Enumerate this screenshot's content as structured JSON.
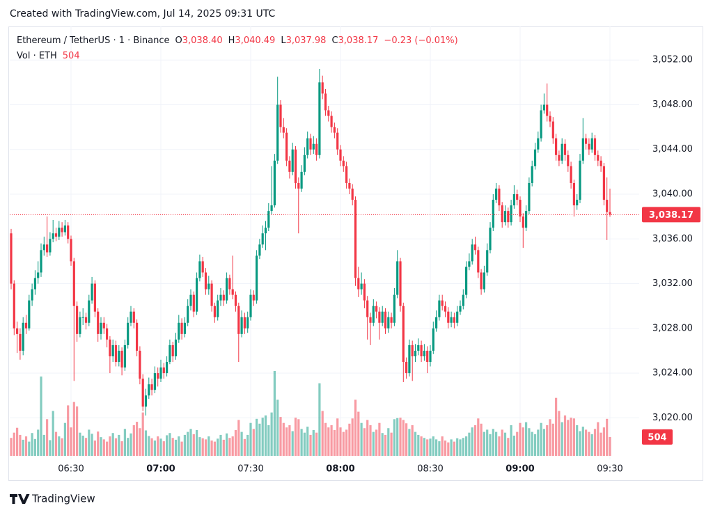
{
  "header": "Created with TradingView.com, Jul 14, 2025 09:31 UTC",
  "footer_logo": "TradingView",
  "chart_data": {
    "type": "candlestick",
    "title": "Ethereum / TetherUS · 1 · Binance",
    "ohlc_legend": [
      {
        "key": "O",
        "value": "3,038.40"
      },
      {
        "key": "H",
        "value": "3,040.49"
      },
      {
        "key": "L",
        "value": "3,037.98"
      },
      {
        "key": "C",
        "value": "3,038.17"
      }
    ],
    "change_label": "−0.23 (−0.01%)",
    "volume_title": "Vol · ETH",
    "last_close_label": "3,038.17",
    "up_color": "#089981",
    "down_color": "#f23645",
    "grid": true,
    "ylim": [
      3016.6,
      3055.0
    ],
    "yticks": [
      {
        "value": 3020,
        "label": "3,020.00"
      },
      {
        "value": 3024,
        "label": "3,024.00"
      },
      {
        "value": 3028,
        "label": "3,028.00"
      },
      {
        "value": 3032,
        "label": "3,032.00"
      },
      {
        "value": 3036,
        "label": "3,036.00"
      },
      {
        "value": 3040,
        "label": "3,040.00"
      },
      {
        "value": 3044,
        "label": "3,044.00"
      },
      {
        "value": 3048,
        "label": "3,048.00"
      },
      {
        "value": 3052,
        "label": "3,052.00"
      }
    ],
    "xticks": [
      "06:30",
      "07:00",
      "07:30",
      "08:00",
      "08:30",
      "09:00",
      "09:30"
    ],
    "x": [
      "06:10",
      "06:11",
      "06:12",
      "06:13",
      "06:14",
      "06:15",
      "06:16",
      "06:17",
      "06:18",
      "06:19",
      "06:20",
      "06:21",
      "06:22",
      "06:23",
      "06:24",
      "06:25",
      "06:26",
      "06:27",
      "06:28",
      "06:29",
      "06:30",
      "06:31",
      "06:32",
      "06:33",
      "06:34",
      "06:35",
      "06:36",
      "06:37",
      "06:38",
      "06:39",
      "06:40",
      "06:41",
      "06:42",
      "06:43",
      "06:44",
      "06:45",
      "06:46",
      "06:47",
      "06:48",
      "06:49",
      "06:50",
      "06:51",
      "06:52",
      "06:53",
      "06:54",
      "06:55",
      "06:56",
      "06:57",
      "06:58",
      "06:59",
      "07:00",
      "07:01",
      "07:02",
      "07:03",
      "07:04",
      "07:05",
      "07:06",
      "07:07",
      "07:08",
      "07:09",
      "07:10",
      "07:11",
      "07:12",
      "07:13",
      "07:14",
      "07:15",
      "07:16",
      "07:17",
      "07:18",
      "07:19",
      "07:20",
      "07:21",
      "07:22",
      "07:23",
      "07:24",
      "07:25",
      "07:26",
      "07:27",
      "07:28",
      "07:29",
      "07:30",
      "07:31",
      "07:32",
      "07:33",
      "07:34",
      "07:35",
      "07:36",
      "07:37",
      "07:38",
      "07:39",
      "07:40",
      "07:41",
      "07:42",
      "07:43",
      "07:44",
      "07:45",
      "07:46",
      "07:47",
      "07:48",
      "07:49",
      "07:50",
      "07:51",
      "07:52",
      "07:53",
      "07:54",
      "07:55",
      "07:56",
      "07:57",
      "07:58",
      "07:59",
      "08:00",
      "08:01",
      "08:02",
      "08:03",
      "08:04",
      "08:05",
      "08:06",
      "08:07",
      "08:08",
      "08:09",
      "08:10",
      "08:11",
      "08:12",
      "08:13",
      "08:14",
      "08:15",
      "08:16",
      "08:17",
      "08:18",
      "08:19",
      "08:20",
      "08:21",
      "08:22",
      "08:23",
      "08:24",
      "08:25",
      "08:26",
      "08:27",
      "08:28",
      "08:29",
      "08:30",
      "08:31",
      "08:32",
      "08:33",
      "08:34",
      "08:35",
      "08:36",
      "08:37",
      "08:38",
      "08:39",
      "08:40",
      "08:41",
      "08:42",
      "08:43",
      "08:44",
      "08:45",
      "08:46",
      "08:47",
      "08:48",
      "08:49",
      "08:50",
      "08:51",
      "08:52",
      "08:53",
      "08:54",
      "08:55",
      "08:56",
      "08:57",
      "08:58",
      "08:59",
      "09:00",
      "09:01",
      "09:02",
      "09:03",
      "09:04",
      "09:05",
      "09:06",
      "09:07",
      "09:08",
      "09:09",
      "09:10",
      "09:11",
      "09:12",
      "09:13",
      "09:14",
      "09:15",
      "09:16",
      "09:17",
      "09:18",
      "09:19",
      "09:20",
      "09:21",
      "09:22",
      "09:23",
      "09:24",
      "09:25",
      "09:26",
      "09:27",
      "09:28",
      "09:29",
      "09:30"
    ],
    "open": [
      3036.5,
      3032.0,
      3028.0,
      3027.5,
      3026.0,
      3028.5,
      3028.0,
      3030.5,
      3031.5,
      3032.5,
      3033.0,
      3035.0,
      3035.5,
      3034.8,
      3036.0,
      3036.5,
      3036.2,
      3037.0,
      3036.6,
      3037.2,
      3036.0,
      3034.0,
      3030.0,
      3027.5,
      3029.0,
      3029.0,
      3028.5,
      3030.5,
      3032.0,
      3029.5,
      3027.5,
      3028.5,
      3028.0,
      3027.0,
      3025.5,
      3026.5,
      3025.0,
      3026.0,
      3024.5,
      3026.5,
      3028.5,
      3029.5,
      3028.5,
      3026.0,
      3023.5,
      3021.0,
      3022.0,
      3023.0,
      3022.5,
      3024.0,
      3023.5,
      3024.5,
      3024.0,
      3025.0,
      3026.5,
      3025.5,
      3027.0,
      3028.5,
      3027.5,
      3028.5,
      3030.0,
      3031.0,
      3029.5,
      3032.5,
      3034.0,
      3033.0,
      3031.5,
      3032.0,
      3030.0,
      3029.0,
      3030.5,
      3031.0,
      3030.5,
      3032.5,
      3031.5,
      3031.0,
      3030.0,
      3027.5,
      3029.0,
      3028.0,
      3029.0,
      3031.0,
      3030.5,
      3034.5,
      3035.5,
      3036.5,
      3037.0,
      3038.5,
      3039.0,
      3043.0,
      3048.0,
      3046.0,
      3045.5,
      3043.0,
      3042.0,
      3044.0,
      3041.0,
      3040.5,
      3042.0,
      3043.5,
      3045.0,
      3044.0,
      3044.5,
      3043.5,
      3050.0,
      3049.0,
      3047.5,
      3047.0,
      3046.0,
      3045.5,
      3044.0,
      3043.0,
      3042.5,
      3041.0,
      3040.5,
      3039.5,
      3032.5,
      3031.5,
      3032.0,
      3030.5,
      3029.0,
      3028.5,
      3030.0,
      3029.5,
      3028.5,
      3029.5,
      3028.0,
      3029.0,
      3028.5,
      3031.0,
      3034.0,
      3030.0,
      3025.0,
      3024.0,
      3026.5,
      3025.5,
      3026.0,
      3026.5,
      3025.5,
      3026.0,
      3025.0,
      3026.0,
      3028.0,
      3029.0,
      3030.5,
      3030.0,
      3029.5,
      3028.5,
      3029.0,
      3028.5,
      3029.5,
      3030.0,
      3031.0,
      3033.5,
      3034.0,
      3035.5,
      3035.0,
      3033.0,
      3031.5,
      3033.0,
      3035.0,
      3037.0,
      3039.5,
      3040.5,
      3039.0,
      3037.5,
      3038.5,
      3037.5,
      3039.0,
      3040.0,
      3039.5,
      3038.0,
      3037.0,
      3038.5,
      3041.0,
      3042.5,
      3044.0,
      3045.0,
      3047.5,
      3048.0,
      3047.0,
      3046.5,
      3045.0,
      3043.5,
      3043.0,
      3044.5,
      3043.5,
      3042.5,
      3041.0,
      3039.0,
      3039.5,
      3043.0,
      3045.0,
      3044.5,
      3044.0,
      3045.0,
      3043.5,
      3043.0,
      3042.5,
      3039.5,
      3038.4
    ],
    "high": [
      3036.9,
      3032.3,
      3028.6,
      3028.0,
      3029.0,
      3029.2,
      3031.0,
      3032.0,
      3033.2,
      3034.0,
      3035.6,
      3036.2,
      3038.0,
      3036.6,
      3037.7,
      3037.0,
      3037.6,
      3037.5,
      3037.7,
      3037.5,
      3036.3,
      3034.3,
      3030.4,
      3029.5,
      3029.8,
      3029.4,
      3031.0,
      3032.6,
      3032.3,
      3029.8,
      3029.0,
      3029.0,
      3028.4,
      3027.3,
      3027.0,
      3026.9,
      3026.5,
      3026.3,
      3027.0,
      3029.0,
      3030.0,
      3029.8,
      3028.8,
      3026.4,
      3023.9,
      3022.6,
      3023.6,
      3023.5,
      3024.6,
      3024.5,
      3025.2,
      3024.9,
      3025.5,
      3027.0,
      3026.8,
      3027.6,
      3029.2,
      3028.9,
      3029.0,
      3030.6,
      3031.5,
      3031.3,
      3033.0,
      3034.6,
      3034.4,
      3033.4,
      3032.7,
      3032.3,
      3030.3,
      3031.0,
      3031.6,
      3031.4,
      3033.0,
      3032.8,
      3034.5,
      3031.3,
      3030.3,
      3029.6,
      3029.4,
      3029.5,
      3031.5,
      3031.4,
      3035.0,
      3036.0,
      3037.2,
      3037.6,
      3039.2,
      3042.5,
      3043.6,
      3050.5,
      3048.4,
      3046.8,
      3045.9,
      3043.4,
      3044.6,
      3044.3,
      3041.5,
      3042.6,
      3044.2,
      3045.6,
      3045.4,
      3045.2,
      3045.0,
      3051.2,
      3050.6,
      3049.4,
      3047.9,
      3047.4,
      3046.4,
      3045.9,
      3044.4,
      3043.4,
      3042.9,
      3041.4,
      3040.9,
      3039.8,
      3033.5,
      3033.0,
      3032.4,
      3030.9,
      3029.4,
      3030.6,
      3030.4,
      3029.9,
      3030.0,
      3029.8,
      3029.5,
      3029.4,
      3031.6,
      3035.0,
      3034.3,
      3030.3,
      3025.4,
      3027.0,
      3026.9,
      3026.6,
      3027.1,
      3026.9,
      3026.6,
      3026.4,
      3026.5,
      3028.6,
      3029.6,
      3031.0,
      3031.0,
      3030.4,
      3029.9,
      3029.5,
      3029.4,
      3030.0,
      3030.5,
      3031.5,
      3034.0,
      3034.7,
      3036.0,
      3036.2,
      3035.3,
      3033.3,
      3033.6,
      3035.6,
      3037.5,
      3040.0,
      3041.0,
      3040.8,
      3039.3,
      3039.0,
      3038.8,
      3039.5,
      3040.8,
      3040.4,
      3039.8,
      3038.3,
      3039.0,
      3041.5,
      3043.0,
      3044.6,
      3045.6,
      3048.0,
      3049.0,
      3049.9,
      3047.4,
      3046.9,
      3045.4,
      3043.9,
      3045.0,
      3044.9,
      3043.9,
      3042.9,
      3041.3,
      3040.0,
      3043.6,
      3046.8,
      3045.4,
      3045.0,
      3045.5,
      3045.3,
      3043.9,
      3043.4,
      3042.8,
      3041.5,
      3040.49
    ],
    "low": [
      3031.5,
      3027.4,
      3025.8,
      3025.2,
      3025.6,
      3027.5,
      3027.8,
      3030.0,
      3031.0,
      3032.0,
      3032.6,
      3034.5,
      3034.4,
      3034.5,
      3035.7,
      3035.8,
      3035.9,
      3036.2,
      3036.3,
      3035.6,
      3033.6,
      3023.3,
      3026.8,
      3027.2,
      3028.3,
      3027.9,
      3028.2,
      3030.2,
      3029.0,
      3026.8,
      3027.0,
      3027.5,
      3026.3,
      3024.0,
      3025.0,
      3024.6,
      3024.6,
      3023.8,
      3024.2,
      3026.2,
      3028.2,
      3028.0,
      3025.5,
      3023.0,
      3020.6,
      3020.2,
      3021.7,
      3022.0,
      3022.2,
      3022.8,
      3023.2,
      3023.5,
      3023.7,
      3024.8,
      3025.0,
      3025.2,
      3026.7,
      3027.0,
      3027.2,
      3028.2,
      3029.6,
      3029.0,
      3029.2,
      3032.2,
      3032.6,
      3031.0,
      3031.0,
      3029.5,
      3028.5,
      3028.7,
      3030.0,
      3030.0,
      3030.2,
      3031.0,
      3030.6,
      3029.5,
      3025.0,
      3027.2,
      3027.5,
      3027.6,
      3028.7,
      3030.0,
      3030.2,
      3034.2,
      3035.2,
      3035.0,
      3036.7,
      3038.2,
      3038.8,
      3042.7,
      3045.5,
      3045.0,
      3042.5,
      3041.4,
      3041.7,
      3040.5,
      3036.5,
      3040.2,
      3041.7,
      3043.2,
      3043.5,
      3043.6,
      3043.0,
      3043.2,
      3048.5,
      3047.0,
      3046.5,
      3045.5,
      3045.0,
      3043.5,
      3042.5,
      3042.0,
      3040.5,
      3040.0,
      3039.0,
      3031.8,
      3030.8,
      3031.0,
      3029.8,
      3027.0,
      3026.5,
      3028.2,
      3028.9,
      3027.0,
      3028.2,
      3027.5,
      3027.6,
      3028.0,
      3028.2,
      3030.7,
      3029.5,
      3023.2,
      3023.5,
      3023.7,
      3023.3,
      3025.0,
      3025.6,
      3025.0,
      3025.1,
      3024.0,
      3024.6,
      3025.7,
      3027.7,
      3028.7,
      3029.6,
      3029.0,
      3028.0,
      3028.1,
      3028.0,
      3028.2,
      3029.2,
      3029.7,
      3030.7,
      3033.2,
      3033.7,
      3034.6,
      3032.5,
      3031.0,
      3031.2,
      3032.7,
      3034.7,
      3036.7,
      3039.2,
      3038.5,
      3037.0,
      3037.2,
      3037.0,
      3037.2,
      3038.7,
      3039.0,
      3037.5,
      3035.2,
      3036.7,
      3038.2,
      3040.7,
      3042.2,
      3043.7,
      3044.7,
      3047.2,
      3046.5,
      3046.0,
      3044.5,
      3043.0,
      3042.5,
      3042.7,
      3043.0,
      3042.0,
      3040.5,
      3038.0,
      3038.6,
      3039.2,
      3042.7,
      3044.0,
      3043.5,
      3043.7,
      3043.0,
      3042.5,
      3042.0,
      3039.0,
      3035.9,
      3037.98
    ],
    "close": [
      3032.0,
      3028.0,
      3027.5,
      3026.0,
      3028.5,
      3028.0,
      3030.5,
      3031.5,
      3032.5,
      3033.0,
      3035.0,
      3035.5,
      3034.8,
      3036.0,
      3036.5,
      3036.2,
      3037.0,
      3036.6,
      3037.2,
      3036.0,
      3034.0,
      3030.0,
      3027.5,
      3029.0,
      3029.0,
      3028.5,
      3030.5,
      3032.0,
      3029.5,
      3027.5,
      3028.5,
      3028.0,
      3027.0,
      3025.5,
      3026.5,
      3025.0,
      3026.0,
      3024.5,
      3026.5,
      3028.5,
      3029.5,
      3028.5,
      3026.0,
      3023.5,
      3021.0,
      3022.0,
      3023.0,
      3022.5,
      3024.0,
      3023.5,
      3024.5,
      3024.0,
      3025.0,
      3026.5,
      3025.5,
      3027.0,
      3028.5,
      3027.5,
      3028.5,
      3030.0,
      3031.0,
      3029.5,
      3032.5,
      3034.0,
      3033.0,
      3031.5,
      3032.0,
      3030.0,
      3029.0,
      3030.5,
      3031.0,
      3030.5,
      3032.5,
      3031.5,
      3031.0,
      3030.0,
      3027.5,
      3029.0,
      3028.0,
      3029.0,
      3031.0,
      3030.5,
      3034.5,
      3035.5,
      3036.5,
      3037.0,
      3038.5,
      3039.0,
      3043.0,
      3048.0,
      3046.0,
      3045.5,
      3043.0,
      3042.0,
      3044.0,
      3041.0,
      3040.5,
      3042.0,
      3043.5,
      3045.0,
      3044.0,
      3044.5,
      3043.5,
      3050.0,
      3049.0,
      3047.5,
      3047.0,
      3046.0,
      3045.5,
      3044.0,
      3043.0,
      3042.5,
      3041.0,
      3040.5,
      3039.5,
      3032.5,
      3031.5,
      3032.0,
      3030.5,
      3029.0,
      3028.5,
      3030.0,
      3029.5,
      3028.5,
      3029.5,
      3028.0,
      3029.0,
      3028.5,
      3031.0,
      3034.0,
      3030.0,
      3025.0,
      3024.0,
      3026.5,
      3025.5,
      3026.0,
      3026.5,
      3025.5,
      3026.0,
      3025.0,
      3026.0,
      3028.0,
      3029.0,
      3030.5,
      3030.0,
      3029.5,
      3028.5,
      3029.0,
      3028.5,
      3029.5,
      3030.0,
      3031.0,
      3033.5,
      3034.0,
      3035.5,
      3035.0,
      3033.0,
      3031.5,
      3033.0,
      3035.0,
      3037.0,
      3039.5,
      3040.5,
      3039.0,
      3037.5,
      3038.5,
      3037.5,
      3039.0,
      3040.0,
      3039.5,
      3038.0,
      3037.0,
      3038.5,
      3041.0,
      3042.5,
      3044.0,
      3045.0,
      3047.5,
      3048.0,
      3047.0,
      3046.5,
      3045.0,
      3043.5,
      3043.0,
      3044.5,
      3043.5,
      3042.5,
      3041.0,
      3039.0,
      3039.5,
      3043.0,
      3045.0,
      3044.5,
      3044.0,
      3045.0,
      3043.5,
      3043.0,
      3042.5,
      3039.5,
      3038.4,
      3038.17
    ],
    "volume": [
      480,
      620,
      750,
      560,
      430,
      520,
      380,
      610,
      450,
      700,
      2120,
      560,
      980,
      420,
      1200,
      640,
      520,
      470,
      880,
      1350,
      760,
      1440,
      1320,
      620,
      540,
      480,
      700,
      590,
      410,
      650,
      500,
      440,
      380,
      520,
      610,
      470,
      560,
      390,
      720,
      480,
      600,
      820,
      910,
      740,
      1160,
      680,
      530,
      470,
      410,
      520,
      460,
      390,
      550,
      610,
      480,
      430,
      520,
      380,
      560,
      640,
      720,
      580,
      690,
      500,
      470,
      440,
      520,
      410,
      380,
      460,
      560,
      430,
      600,
      480,
      520,
      690,
      960,
      640,
      450,
      560,
      880,
      720,
      990,
      860,
      1020,
      1080,
      820,
      1160,
      2270,
      1500,
      1040,
      880,
      760,
      820,
      660,
      1020,
      980,
      720,
      620,
      780,
      560,
      690,
      620,
      1940,
      1200,
      880,
      760,
      820,
      690,
      1000,
      760,
      640,
      700,
      860,
      1000,
      1500,
      1180,
      880,
      740,
      960,
      820,
      640,
      700,
      880,
      610,
      560,
      740,
      620,
      980,
      1010,
      1020,
      960,
      870,
      720,
      820,
      640,
      560,
      520,
      480,
      440,
      460,
      520,
      440,
      390,
      520,
      410,
      360,
      440,
      380,
      470,
      440,
      480,
      520,
      620,
      760,
      820,
      1000,
      860,
      640,
      700,
      580,
      720,
      640,
      520,
      700,
      620,
      480,
      820,
      540,
      640,
      880,
      760,
      900,
      740,
      640,
      580,
      700,
      880,
      720,
      820,
      980,
      860,
      1550,
      1200,
      900,
      1080,
      960,
      1020,
      1000,
      820,
      660,
      780,
      700,
      640,
      580,
      720,
      900,
      620,
      760,
      990,
      504
    ]
  }
}
